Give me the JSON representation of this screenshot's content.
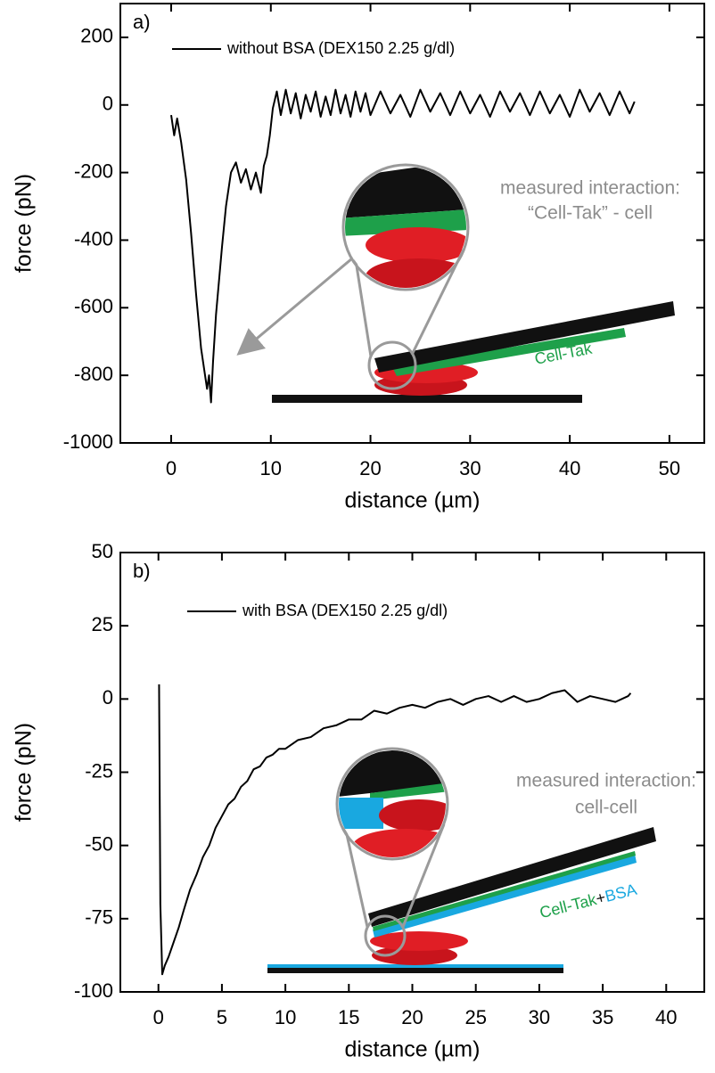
{
  "chart_data": [
    {
      "type": "line",
      "panel_label": "a)",
      "x_label": "distance (µm)",
      "y_label": "force (pN)",
      "xlim": [
        -5.1,
        53.5
      ],
      "ylim": [
        -1000,
        300
      ],
      "xticks": [
        0,
        10,
        20,
        30,
        40,
        50
      ],
      "yticks": [
        -1000,
        -800,
        -600,
        -400,
        -200,
        0,
        200
      ],
      "legend": "upper left",
      "annotations": [
        "measured interaction:",
        "“Cell-Tak” - cell",
        "Cell-Tak"
      ],
      "series": [
        {
          "name": "without BSA (DEX150 2.25 g/dl)",
          "color": "#000000",
          "x": [
            0,
            0.3,
            0.6,
            1,
            1.5,
            2,
            2.5,
            3,
            3.3,
            3.6,
            3.8,
            4,
            4.2,
            4.5,
            4.8,
            5.1,
            5.5,
            6,
            6.5,
            7,
            7.5,
            8,
            8.5,
            9,
            9.3,
            9.6,
            9.9,
            10.2,
            10.6,
            11,
            11.5,
            12,
            12.5,
            13,
            13.5,
            14,
            14.5,
            15,
            15.5,
            16,
            16.5,
            17,
            17.5,
            18,
            18.5,
            19,
            19.5,
            20,
            21,
            22,
            23,
            24,
            25,
            26,
            27,
            28,
            29,
            30,
            31,
            32,
            33,
            34,
            35,
            36,
            37,
            38,
            39,
            40,
            41,
            42,
            43,
            44,
            45,
            46,
            46.5
          ],
          "values": [
            -30,
            -90,
            -40,
            -110,
            -220,
            -380,
            -560,
            -720,
            -780,
            -840,
            -800,
            -880,
            -760,
            -620,
            -520,
            -420,
            -300,
            -200,
            -170,
            -230,
            -190,
            -250,
            -200,
            -260,
            -180,
            -150,
            -90,
            -10,
            40,
            -30,
            45,
            -25,
            35,
            -40,
            30,
            -20,
            40,
            -35,
            25,
            -30,
            45,
            -25,
            30,
            -35,
            40,
            -20,
            35,
            -30,
            40,
            -25,
            30,
            -35,
            45,
            -20,
            35,
            -30,
            40,
            -25,
            30,
            -35,
            40,
            -20,
            35,
            -30,
            40,
            -25,
            30,
            -35,
            45,
            -20,
            35,
            -30,
            40,
            -25,
            10
          ]
        }
      ]
    },
    {
      "type": "line",
      "panel_label": "b)",
      "x_label": "distance (µm)",
      "y_label": "force (pN)",
      "xlim": [
        -3,
        43
      ],
      "ylim": [
        -100,
        50
      ],
      "xticks": [
        0,
        5,
        10,
        15,
        20,
        25,
        30,
        35,
        40
      ],
      "yticks": [
        -100,
        -75,
        -50,
        -25,
        0,
        25,
        50
      ],
      "legend": "upper left",
      "annotations": [
        "measured interaction:",
        "cell-cell",
        "Cell-Tak",
        "+",
        "BSA"
      ],
      "series": [
        {
          "name": "with BSA (DEX150 2.25 g/dl)",
          "color": "#000000",
          "x": [
            0.05,
            0.15,
            0.3,
            0.5,
            0.8,
            1.2,
            1.6,
            2,
            2.5,
            3,
            3.5,
            4,
            4.5,
            5,
            5.5,
            6,
            6.5,
            7,
            7.5,
            8,
            8.5,
            9,
            9.5,
            10,
            11,
            12,
            13,
            14,
            15,
            16,
            17,
            18,
            19,
            20,
            21,
            22,
            23,
            24,
            25,
            26,
            27,
            28,
            29,
            30,
            31,
            32,
            33,
            34,
            35,
            36,
            37,
            37.2
          ],
          "values": [
            5,
            -70,
            -94,
            -91,
            -88,
            -83,
            -78,
            -72,
            -65,
            -60,
            -54,
            -50,
            -44,
            -40,
            -36,
            -34,
            -30,
            -28,
            -24,
            -23,
            -20,
            -19,
            -17,
            -17,
            -14,
            -13,
            -10,
            -9,
            -7,
            -7,
            -4,
            -5,
            -3,
            -2,
            -3,
            -1,
            0,
            -2,
            0,
            1,
            -1,
            1,
            -1,
            0,
            2,
            3,
            -1,
            1,
            0,
            -1,
            1,
            2
          ]
        }
      ]
    }
  ]
}
